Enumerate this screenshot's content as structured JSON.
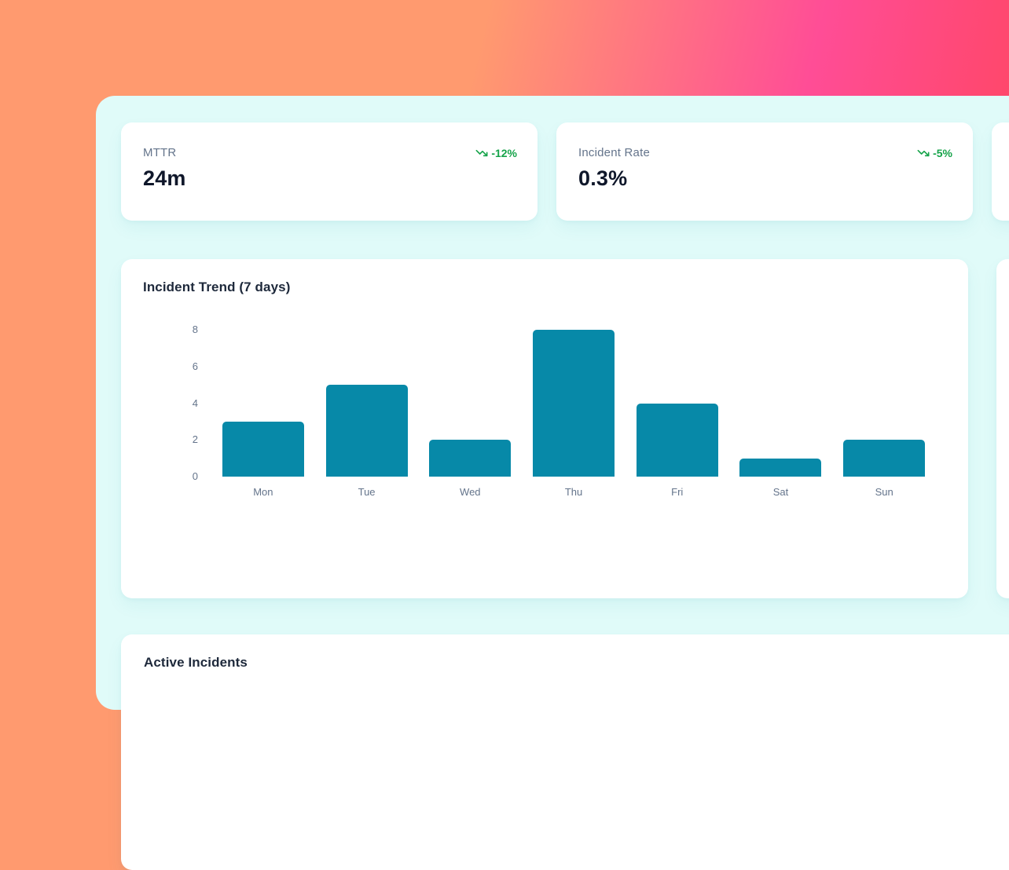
{
  "theme": {
    "bg_gradient": [
      "#ff9a6f",
      "#ff4d96",
      "#ff4454"
    ],
    "panel_bg": "#e0fbf9",
    "card_bg": "#ffffff",
    "bar_teal": "#0789a8",
    "positive_green": "#16a34a",
    "label_gray": "#64748b",
    "value_dark": "#0f172a"
  },
  "kpi_cards": [
    {
      "label": "MTTR",
      "value": "24m",
      "delta": "-12%",
      "trend_icon": "trending-down-icon"
    },
    {
      "label": "Incident Rate",
      "value": "0.3%",
      "delta": "-5%",
      "trend_icon": "trending-down-icon"
    }
  ],
  "chart_card": {
    "title": "Incident Trend (7 days)"
  },
  "chart_data": {
    "type": "bar",
    "title": "Incident Trend (7 days)",
    "categories": [
      "Mon",
      "Tue",
      "Wed",
      "Thu",
      "Fri",
      "Sat",
      "Sun"
    ],
    "values": [
      3,
      5,
      2,
      8,
      4,
      1,
      2
    ],
    "xlabel": "",
    "ylabel": "",
    "ylim": [
      0,
      8
    ],
    "yticks": [
      0,
      2,
      4,
      6,
      8
    ],
    "bar_color": "#0789a8",
    "grid": false,
    "legend": false
  },
  "incidents_card": {
    "title": "Active Incidents"
  }
}
